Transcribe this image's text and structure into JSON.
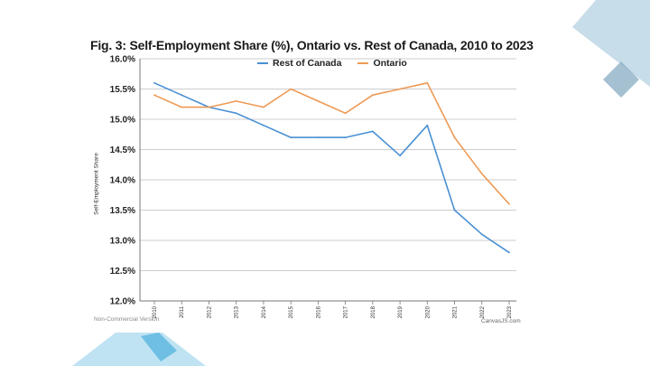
{
  "slide": {
    "colors": {
      "deco_dark": "#8fb0c6",
      "deco_light": "#c7dde9",
      "deco_cyan": "#5fb9df",
      "deco_cyan_light": "#bfe3f3"
    }
  },
  "chart_data": {
    "type": "line",
    "title": "Fig. 3: Self-Employment Share (%), Ontario vs. Rest of Canada, 2010 to 2023",
    "xlabel": "",
    "ylabel": "Self-Employment Share",
    "x": [
      "2010",
      "2011",
      "2012",
      "2013",
      "2014",
      "2015",
      "2016",
      "2017",
      "2018",
      "2019",
      "2020",
      "2021",
      "2022",
      "2023"
    ],
    "ylim": [
      12.0,
      16.0
    ],
    "yticks": [
      "12.0%",
      "12.5%",
      "13.0%",
      "13.5%",
      "14.0%",
      "14.5%",
      "15.0%",
      "15.5%",
      "16.0%"
    ],
    "ytick_values": [
      12.0,
      12.5,
      13.0,
      13.5,
      14.0,
      14.5,
      15.0,
      15.5,
      16.0
    ],
    "grid": true,
    "legend_position": "top-center",
    "series": [
      {
        "name": "Rest of Canada",
        "color": "#4a90d4",
        "values": [
          15.6,
          15.4,
          15.2,
          15.1,
          14.9,
          14.7,
          14.7,
          14.7,
          14.8,
          14.4,
          14.9,
          13.5,
          13.1,
          12.8
        ]
      },
      {
        "name": "Ontario",
        "color": "#ee9a55",
        "values": [
          15.4,
          15.2,
          15.2,
          15.3,
          15.2,
          15.5,
          15.3,
          15.1,
          15.4,
          15.5,
          15.6,
          14.7,
          14.1,
          13.6
        ]
      }
    ],
    "watermark_left": "Non-Commercial Version",
    "watermark_right": "CanvasJS.com"
  }
}
